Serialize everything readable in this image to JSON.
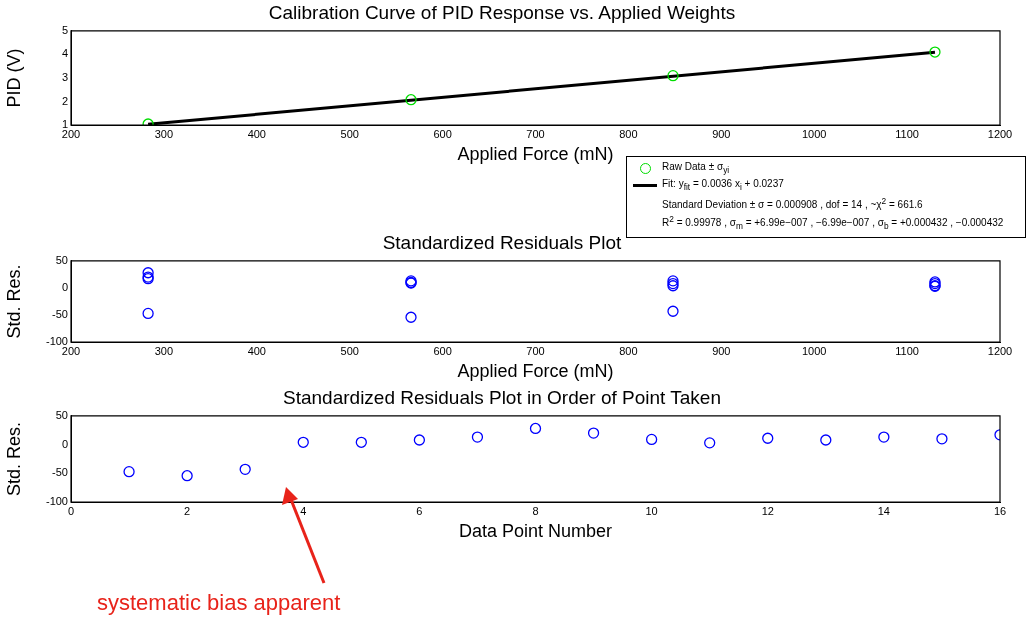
{
  "chart_data": [
    {
      "type": "scatter",
      "title": "Calibration Curve of PID Response vs. Applied Weights",
      "xlabel": "Applied Force (mN)",
      "ylabel": "PID (V)",
      "xlim": [
        200,
        1200
      ],
      "xticks": [
        200,
        300,
        400,
        500,
        600,
        700,
        800,
        900,
        1000,
        1100,
        1200
      ],
      "ylim": [
        1,
        5
      ],
      "yticks": [
        1,
        2,
        3,
        4,
        5
      ],
      "grid": false,
      "legend": "bottom right",
      "series": [
        {
          "name": "Raw Data ± σ$_{yi}$",
          "marker": "circle",
          "color": "#00dd00",
          "x": [
            283,
            566,
            848,
            1130
          ],
          "values": [
            1.05,
            2.08,
            3.1,
            4.1
          ]
        },
        {
          "name": "Fit: y$_{fit}$ = 0.0036 x$_{i}$ + 0.0237",
          "type": "line",
          "marker": "none",
          "line_style": "solid",
          "color": "#000000",
          "x": [
            283,
            1130
          ],
          "values": [
            1.04,
            4.09
          ]
        }
      ],
      "annotations": [
        "Standard Deviation ± σ = 0.000908 , dof = 14 , ~χ$^{2}$ = 661.6",
        "R$^{2}$ = 0.99978 , σ$_{m}$ = +6.99e−007 , −6.99e−007 , σ$_{b}$ = +0.000432 , −0.000432"
      ]
    },
    {
      "type": "scatter",
      "title": "Standardized Residuals Plot",
      "xlabel": "Applied Force (mN)",
      "ylabel": "Std. Res.",
      "xlim": [
        200,
        1200
      ],
      "xticks": [
        200,
        300,
        400,
        500,
        600,
        700,
        800,
        900,
        1000,
        1100,
        1200
      ],
      "ylim": [
        -100,
        50
      ],
      "yticks": [
        -100,
        -50,
        0,
        50
      ],
      "grid": false,
      "legend": false,
      "marker": "circle",
      "series": [
        {
          "color": "#0000ff",
          "x": [
            283,
            283,
            283,
            283,
            566,
            566,
            566,
            566,
            848,
            848,
            848,
            848,
            1130,
            1130,
            1130,
            1130
          ],
          "values": [
            28,
            20,
            17,
            -47,
            13,
            10,
            9,
            -54,
            13,
            8,
            4,
            -43,
            11,
            8,
            4,
            3
          ]
        }
      ]
    },
    {
      "type": "scatter",
      "title": "Standardized Residuals Plot in Order of Point Taken",
      "xlabel": "Data Point Number",
      "ylabel": "Std. Res.",
      "xlim": [
        0,
        16
      ],
      "xticks": [
        0,
        2,
        4,
        6,
        8,
        10,
        12,
        14,
        16
      ],
      "ylim": [
        -100,
        50
      ],
      "yticks": [
        -100,
        -50,
        0,
        50
      ],
      "grid": false,
      "legend": false,
      "marker": "circle",
      "series": [
        {
          "color": "#0000ff",
          "x": [
            1,
            2,
            3,
            4,
            5,
            6,
            7,
            8,
            9,
            10,
            11,
            12,
            13,
            14,
            15,
            16
          ],
          "values": [
            -47,
            -54,
            -43,
            4,
            4,
            8,
            13,
            28,
            20,
            9,
            3,
            11,
            8,
            13,
            10,
            17
          ]
        }
      ],
      "annotations": [
        "systematic bias apparent"
      ]
    }
  ]
}
